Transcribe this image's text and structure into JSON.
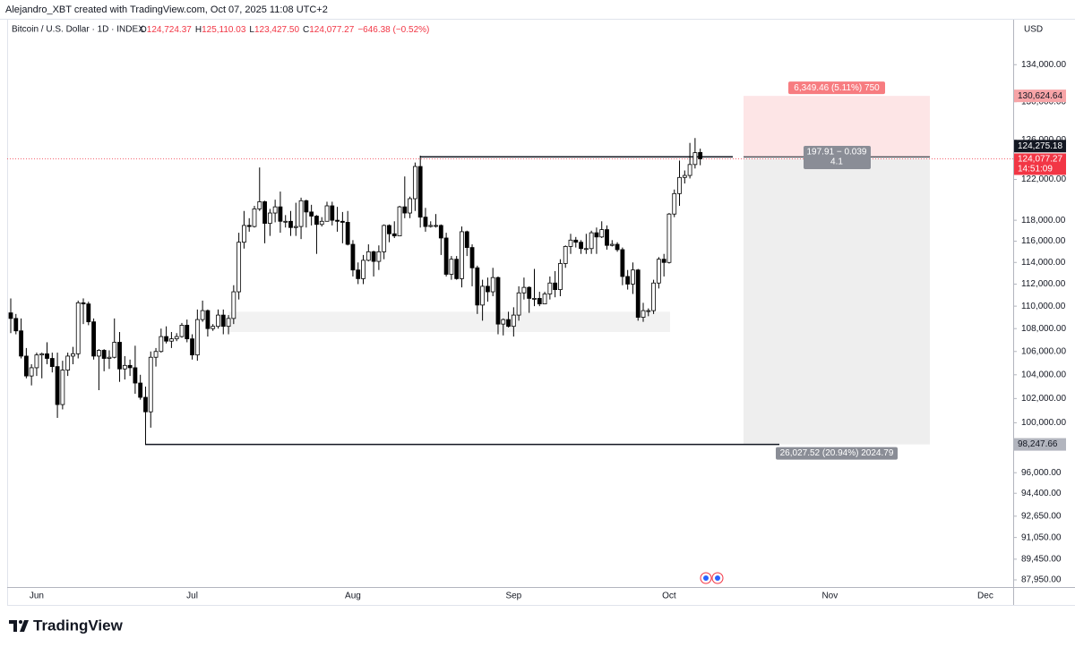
{
  "chart_data": {
    "type": "candlestick",
    "header": "Alejandro_XBT created with TradingView.com, Oct 07, 2025 11:08 UTC+2",
    "title": "Bitcoin / U.S. Dollar · 1D · INDEX",
    "ohlc": [
      {
        "key": "O",
        "value": "124,724.37"
      },
      {
        "key": "H",
        "value": "125,110.03"
      },
      {
        "key": "L",
        "value": "123,427.50"
      },
      {
        "key": "C",
        "value": "124,077.27"
      },
      {
        "key": "",
        "value": "−646.38 (−0.52%)"
      }
    ],
    "currency": "USD",
    "brand": "TradingView",
    "log_scale": true,
    "grid": false,
    "up_color": "#ffffff",
    "down_color": "#000000",
    "wick_color": "#000000",
    "ylim": [
      87500,
      137000
    ],
    "yticks": [
      {
        "value": 134000,
        "label": "134,000.00"
      },
      {
        "value": 130000,
        "label": "130,000.00"
      },
      {
        "value": 126000,
        "label": "126,000.00"
      },
      {
        "value": 122000,
        "label": "122,000.00"
      },
      {
        "value": 118000,
        "label": "118,000.00"
      },
      {
        "value": 116000,
        "label": "116,000.00"
      },
      {
        "value": 114000,
        "label": "114,000.00"
      },
      {
        "value": 112000,
        "label": "112,000.00"
      },
      {
        "value": 110000,
        "label": "110,000.00"
      },
      {
        "value": 108000,
        "label": "108,000.00"
      },
      {
        "value": 106000,
        "label": "106,000.00"
      },
      {
        "value": 104000,
        "label": "104,000.00"
      },
      {
        "value": 102000,
        "label": "102,000.00"
      },
      {
        "value": 100000,
        "label": "100,000.00"
      },
      {
        "value": 96000,
        "label": "96,000.00"
      },
      {
        "value": 94400,
        "label": "94,400.00"
      },
      {
        "value": 92650,
        "label": "92,650.00"
      },
      {
        "value": 91050,
        "label": "91,050.00"
      },
      {
        "value": 89450,
        "label": "89,450.00"
      },
      {
        "value": 87950,
        "label": "87,950.00"
      }
    ],
    "categories": [
      null,
      null,
      null,
      null,
      null,
      "Jun",
      null,
      null,
      null,
      null,
      null,
      null,
      null,
      null,
      null,
      null,
      null,
      null,
      null,
      null,
      null,
      null,
      null,
      null,
      null,
      null,
      null,
      null,
      null,
      null,
      null,
      null,
      null,
      null,
      null,
      "Jul",
      null,
      null,
      null,
      null,
      null,
      null,
      null,
      null,
      null,
      null,
      null,
      null,
      null,
      null,
      null,
      null,
      null,
      null,
      null,
      null,
      null,
      null,
      null,
      null,
      null,
      null,
      null,
      null,
      null,
      null,
      "Aug",
      null,
      null,
      null,
      null,
      null,
      null,
      null,
      null,
      null,
      null,
      null,
      null,
      null,
      null,
      null,
      null,
      null,
      null,
      null,
      null,
      null,
      null,
      null,
      null,
      null,
      null,
      null,
      null,
      null,
      null,
      "Sep",
      null,
      null,
      null,
      null,
      null,
      null,
      null,
      null,
      null,
      null,
      null,
      null,
      null,
      null,
      null,
      null,
      null,
      null,
      null,
      null,
      null,
      null,
      null,
      null,
      null,
      null,
      null,
      null,
      null,
      "Oct",
      null,
      null,
      null,
      null,
      null,
      null,
      null,
      null,
      null,
      null,
      null,
      null,
      null,
      null,
      null,
      null,
      null,
      null,
      null,
      null,
      null,
      null,
      null,
      null,
      null,
      null,
      null,
      null,
      null,
      null,
      "Nov",
      null,
      null,
      null,
      null,
      null,
      null,
      null,
      null,
      null,
      null,
      null,
      null,
      null,
      null,
      null,
      null,
      null,
      null,
      null,
      null,
      null,
      null,
      null,
      null,
      null,
      null,
      null,
      null,
      null,
      "Dec",
      null,
      null,
      null,
      null
    ],
    "candles": [
      [
        109400,
        110700,
        107600,
        108900
      ],
      [
        108900,
        109300,
        107500,
        107800
      ],
      [
        107800,
        108900,
        105400,
        105600
      ],
      [
        105600,
        106300,
        103700,
        103900
      ],
      [
        103900,
        104900,
        103100,
        104600
      ],
      [
        104600,
        105900,
        103900,
        105700
      ],
      [
        105700,
        105900,
        103700,
        105800
      ],
      [
        105800,
        106800,
        104900,
        105400
      ],
      [
        105400,
        105900,
        104200,
        104700
      ],
      [
        104700,
        105900,
        100400,
        101500
      ],
      [
        101500,
        105200,
        101100,
        104400
      ],
      [
        104400,
        105900,
        103900,
        105600
      ],
      [
        105600,
        106400,
        104900,
        105800
      ],
      [
        105800,
        110500,
        105400,
        110300
      ],
      [
        110300,
        110700,
        108400,
        110200
      ],
      [
        110200,
        110400,
        108300,
        108600
      ],
      [
        108600,
        108900,
        105300,
        105600
      ],
      [
        105600,
        106200,
        102700,
        106100
      ],
      [
        106100,
        106200,
        104300,
        105400
      ],
      [
        105400,
        106100,
        104500,
        105500
      ],
      [
        105500,
        108900,
        105400,
        106800
      ],
      [
        106800,
        107700,
        103400,
        104500
      ],
      [
        104500,
        105600,
        103600,
        104800
      ],
      [
        104800,
        105300,
        103900,
        104600
      ],
      [
        104600,
        106500,
        102400,
        103300
      ],
      [
        103300,
        104000,
        101900,
        102100
      ],
      [
        102100,
        103000,
        98200,
        100900
      ],
      [
        100900,
        106000,
        99600,
        105500
      ],
      [
        105500,
        106300,
        104700,
        106000
      ],
      [
        106000,
        108000,
        105900,
        107300
      ],
      [
        107300,
        108200,
        106700,
        106900
      ],
      [
        106900,
        107700,
        106300,
        107100
      ],
      [
        107100,
        107600,
        106900,
        107300
      ],
      [
        107300,
        108500,
        107200,
        108300
      ],
      [
        108300,
        108800,
        106800,
        107100
      ],
      [
        107100,
        107500,
        105300,
        105700
      ],
      [
        105700,
        109700,
        105200,
        108800
      ],
      [
        108800,
        110500,
        108600,
        109600
      ],
      [
        109600,
        109700,
        107300,
        108000
      ],
      [
        108000,
        108400,
        107800,
        108200
      ],
      [
        108200,
        109700,
        108000,
        109200
      ],
      [
        109200,
        109700,
        107500,
        108200
      ],
      [
        108200,
        109200,
        107500,
        108900
      ],
      [
        108900,
        111900,
        108400,
        111300
      ],
      [
        111300,
        116800,
        110600,
        115900
      ],
      [
        115900,
        118900,
        115300,
        117500
      ],
      [
        117500,
        118200,
        116900,
        117400
      ],
      [
        117400,
        119400,
        117300,
        119100
      ],
      [
        119100,
        123200,
        118900,
        119800
      ],
      [
        119800,
        119900,
        115800,
        117700
      ],
      [
        117700,
        119100,
        116500,
        118700
      ],
      [
        118700,
        120000,
        117800,
        119300
      ],
      [
        119300,
        120800,
        116800,
        117900
      ],
      [
        117900,
        118500,
        117300,
        117900
      ],
      [
        117900,
        118900,
        116500,
        117300
      ],
      [
        117300,
        119700,
        116500,
        117400
      ],
      [
        117400,
        120200,
        116200,
        119900
      ],
      [
        119900,
        120000,
        117300,
        118800
      ],
      [
        118800,
        119500,
        117500,
        118400
      ],
      [
        118400,
        118500,
        114800,
        117600
      ],
      [
        117600,
        118300,
        117400,
        117900
      ],
      [
        117900,
        119800,
        117900,
        119400
      ],
      [
        119400,
        119800,
        117500,
        118000
      ],
      [
        118000,
        119300,
        116900,
        117900
      ],
      [
        117900,
        118800,
        115800,
        117800
      ],
      [
        117800,
        118900,
        115600,
        115700
      ],
      [
        115700,
        116100,
        112700,
        113300
      ],
      [
        113300,
        114000,
        112000,
        112500
      ],
      [
        112500,
        114700,
        112000,
        114200
      ],
      [
        114200,
        115700,
        114100,
        115000
      ],
      [
        115000,
        115100,
        112700,
        114100
      ],
      [
        114100,
        115600,
        113300,
        115000
      ],
      [
        115000,
        117600,
        114300,
        117500
      ],
      [
        117500,
        117600,
        115900,
        116700
      ],
      [
        116700,
        117900,
        116300,
        116500
      ],
      [
        116500,
        119400,
        116500,
        119300
      ],
      [
        119300,
        122300,
        118200,
        118700
      ],
      [
        118700,
        120300,
        118200,
        120100
      ],
      [
        120100,
        123700,
        118900,
        123300
      ],
      [
        123300,
        124400,
        117300,
        118300
      ],
      [
        118300,
        119200,
        116900,
        117400
      ],
      [
        117400,
        117900,
        117300,
        117500
      ],
      [
        117500,
        118600,
        117300,
        117500
      ],
      [
        117500,
        117600,
        114700,
        116300
      ],
      [
        116300,
        116800,
        112700,
        112900
      ],
      [
        112900,
        114600,
        112400,
        114300
      ],
      [
        114300,
        114600,
        112400,
        112500
      ],
      [
        112500,
        117400,
        111700,
        116900
      ],
      [
        116900,
        117000,
        114600,
        115400
      ],
      [
        115400,
        115700,
        111800,
        113500
      ],
      [
        113500,
        113700,
        109300,
        110100
      ],
      [
        110100,
        112400,
        108700,
        111800
      ],
      [
        111800,
        112600,
        110400,
        111300
      ],
      [
        111300,
        113500,
        110900,
        112600
      ],
      [
        112600,
        112700,
        107500,
        108400
      ],
      [
        108400,
        108900,
        107400,
        108800
      ],
      [
        108800,
        109500,
        108100,
        108200
      ],
      [
        108200,
        109900,
        107300,
        109200
      ],
      [
        109200,
        111800,
        108700,
        111200
      ],
      [
        111200,
        112600,
        110600,
        111700
      ],
      [
        111700,
        111800,
        109400,
        110700
      ],
      [
        110700,
        113400,
        110000,
        110700
      ],
      [
        110700,
        111300,
        110000,
        110200
      ],
      [
        110200,
        111300,
        110200,
        111100
      ],
      [
        111100,
        112700,
        110600,
        112100
      ],
      [
        112100,
        113200,
        110800,
        111500
      ],
      [
        111500,
        114300,
        110900,
        113900
      ],
      [
        113900,
        115600,
        113500,
        115500
      ],
      [
        115500,
        116700,
        114800,
        116100
      ],
      [
        116100,
        116400,
        115400,
        115900
      ],
      [
        115900,
        116100,
        114800,
        115300
      ],
      [
        115300,
        116700,
        114800,
        115300
      ],
      [
        115300,
        117000,
        114800,
        116800
      ],
      [
        116800,
        117300,
        114800,
        116400
      ],
      [
        116400,
        117900,
        116300,
        117100
      ],
      [
        117100,
        117500,
        115200,
        115600
      ],
      [
        115600,
        116100,
        115500,
        115700
      ],
      [
        115700,
        115900,
        115000,
        115200
      ],
      [
        115200,
        115400,
        111900,
        112700
      ],
      [
        112700,
        113300,
        111500,
        112000
      ],
      [
        112000,
        114000,
        111100,
        113300
      ],
      [
        113300,
        113400,
        108700,
        109000
      ],
      [
        109000,
        110300,
        108600,
        109600
      ],
      [
        109600,
        109800,
        109100,
        109600
      ],
      [
        109600,
        112400,
        109300,
        112100
      ],
      [
        112100,
        114500,
        111600,
        114300
      ],
      [
        114300,
        114800,
        112700,
        114000
      ],
      [
        114000,
        118700,
        113900,
        118600
      ],
      [
        118600,
        121000,
        118300,
        120600
      ],
      [
        120600,
        123900,
        119400,
        122200
      ],
      [
        122200,
        122900,
        121600,
        122400
      ],
      [
        122400,
        125700,
        122100,
        123500
      ],
      [
        123500,
        126200,
        123100,
        124700
      ],
      [
        124724.37,
        125110.03,
        123427.5,
        124077.27
      ],
      null,
      null,
      null,
      null,
      null,
      null,
      null,
      null,
      null,
      null,
      null,
      null,
      null,
      null,
      null,
      null,
      null,
      null,
      null,
      null,
      null,
      null,
      null,
      null,
      null,
      null,
      null,
      null,
      null,
      null,
      null,
      null,
      null,
      null,
      null,
      null,
      null,
      null,
      null,
      null,
      null,
      null,
      null,
      null,
      null,
      null,
      null,
      null,
      null,
      null,
      null,
      null,
      null,
      null,
      null,
      null,
      null,
      null,
      null
    ],
    "zone": [
      107700,
      109500
    ],
    "resistance": {
      "value": 124275.18,
      "label": "124,275.18"
    },
    "support": {
      "value": 98247.66,
      "label": "98,247.66"
    },
    "last_price": {
      "value": 124077.27,
      "label": "124,077.27",
      "countdown": "14:51:09"
    },
    "target": {
      "value": 130624.64,
      "label": "130,624.64",
      "annotation": "6,349.46 (5.11%) 750"
    },
    "entry_annotation": [
      "197.91 − 0.039",
      "4.1"
    ],
    "stop_annotation": "26,027.52 (20.94%) 2024.79"
  }
}
